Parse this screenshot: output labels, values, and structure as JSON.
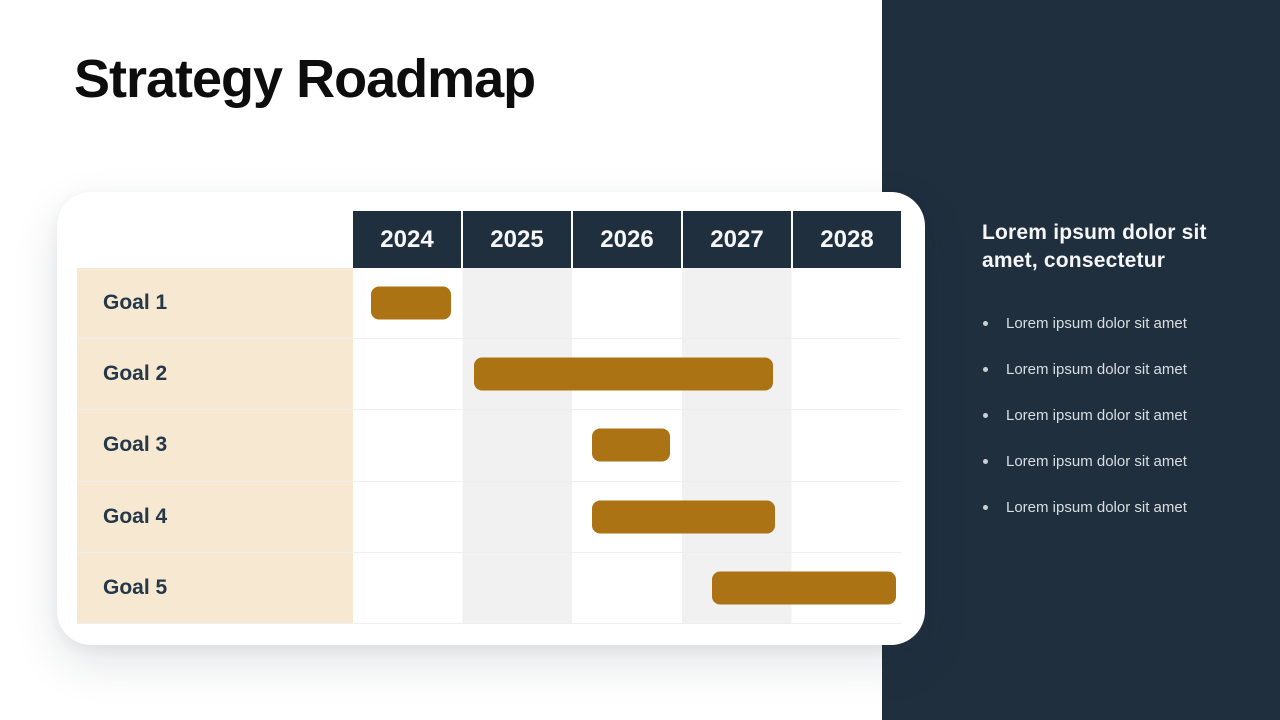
{
  "slide": {
    "title": "Strategy Roadmap",
    "background_color": "#FFFFFF"
  },
  "sidebar": {
    "background_color": "#202F3E",
    "heading": "Lorem ipsum dolor sit amet, consectetur",
    "bullets": [
      "Lorem ipsum dolor sit amet",
      "Lorem ipsum dolor sit amet",
      "Lorem ipsum dolor sit amet",
      "Lorem ipsum dolor sit amet",
      "Lorem ipsum dolor sit amet"
    ]
  },
  "table": {
    "years": [
      "2024",
      "2025",
      "2026",
      "2027",
      "2028"
    ],
    "goals": [
      "Goal 1",
      "Goal 2",
      "Goal 3",
      "Goal 4",
      "Goal 5"
    ]
  },
  "chart_data": {
    "type": "gantt",
    "title": "Strategy Roadmap",
    "x_axis": {
      "tick_labels": [
        "2024",
        "2025",
        "2026",
        "2027",
        "2028"
      ],
      "range": [
        2024,
        2029
      ],
      "unit": "year"
    },
    "rows": [
      "Goal 1",
      "Goal 2",
      "Goal 3",
      "Goal 4",
      "Goal 5"
    ],
    "bars": [
      {
        "label": "Goal 1",
        "start": 2024.16,
        "end": 2024.89
      },
      {
        "label": "Goal 2",
        "start": 2025.1,
        "end": 2027.83
      },
      {
        "label": "Goal 3",
        "start": 2026.18,
        "end": 2026.89
      },
      {
        "label": "Goal 4",
        "start": 2026.18,
        "end": 2027.85
      },
      {
        "label": "Goal 5",
        "start": 2027.28,
        "end": 2028.95
      }
    ],
    "layout_hints": {
      "alternating_column_stripes": [
        "#FFFFFF",
        "#F1F1F2"
      ],
      "header_background": "#202F3E",
      "row_label_background": "#F7E8D2",
      "grid": "horizontal-dividers"
    },
    "bar_color": "#AC7315"
  },
  "colors": {
    "navy": "#202F3E",
    "gold": "#AC7315",
    "cream": "#F7E8D2",
    "stripe_gray": "#F1F1F2",
    "heading_text": "#F4F6F8",
    "bullet_text": "#D9DEE3",
    "goal_text": "#24384A",
    "title_text": "#0D0D0D"
  }
}
